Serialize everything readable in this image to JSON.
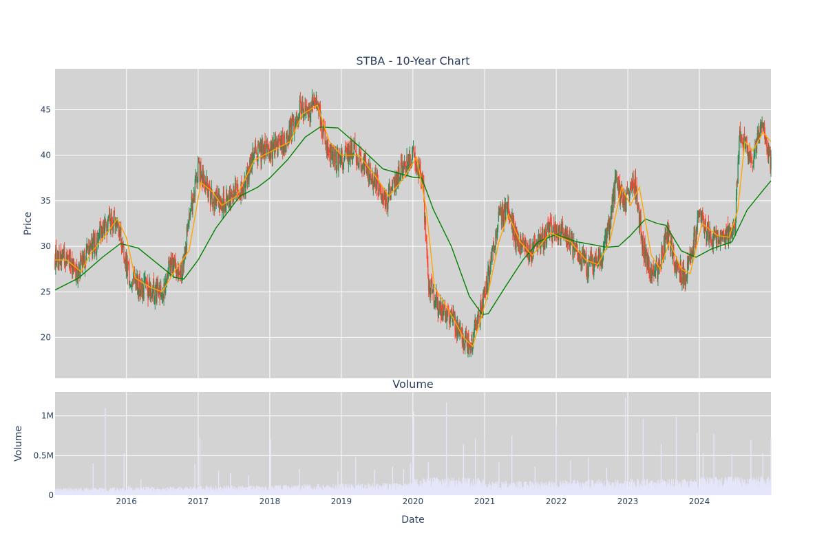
{
  "chart_data": {
    "type": "candlestick",
    "title": "STBA - 10-Year Chart",
    "xlabel": "Date",
    "x_range": [
      "2015-01-02",
      "2024-12-31"
    ],
    "x_ticks": [
      "2016",
      "2017",
      "2018",
      "2019",
      "2020",
      "2021",
      "2022",
      "2023",
      "2024"
    ],
    "price_panel": {
      "ylabel": "Price",
      "ylim": [
        15.5,
        49.5
      ],
      "y_ticks": [
        20,
        25,
        30,
        35,
        40,
        45
      ],
      "y_tick_labels": [
        "20",
        "25",
        "30",
        "35",
        "40",
        "45"
      ],
      "up_color": "#2e8b57",
      "down_color": "#ff4433",
      "price_path": [
        [
          "2015-01-02",
          28.5
        ],
        [
          "2015-03-01",
          28.7
        ],
        [
          "2015-05-01",
          27.0
        ],
        [
          "2015-06-15",
          29.5
        ],
        [
          "2015-08-01",
          30.5
        ],
        [
          "2015-09-15",
          32.0
        ],
        [
          "2015-11-01",
          33.0
        ],
        [
          "2015-12-01",
          31.5
        ],
        [
          "2016-01-15",
          26.5
        ],
        [
          "2016-03-01",
          25.5
        ],
        [
          "2016-04-15",
          25.3
        ],
        [
          "2016-06-01",
          25.0
        ],
        [
          "2016-07-01",
          25.0
        ],
        [
          "2016-08-15",
          28.0
        ],
        [
          "2016-10-15",
          27.5
        ],
        [
          "2016-11-15",
          33.0
        ],
        [
          "2016-12-31",
          38.5
        ],
        [
          "2017-02-01",
          37.0
        ],
        [
          "2017-03-15",
          35.0
        ],
        [
          "2017-05-01",
          34.5
        ],
        [
          "2017-07-01",
          36.0
        ],
        [
          "2017-08-15",
          35.5
        ],
        [
          "2017-10-15",
          40.5
        ],
        [
          "2018-01-01",
          40.3
        ],
        [
          "2018-03-01",
          41.0
        ],
        [
          "2018-04-15",
          42.5
        ],
        [
          "2018-06-01",
          45.0
        ],
        [
          "2018-07-15",
          44.8
        ],
        [
          "2018-09-01",
          46.0
        ],
        [
          "2018-10-15",
          41.0
        ],
        [
          "2018-12-20",
          39.0
        ],
        [
          "2019-03-01",
          40.5
        ],
        [
          "2019-05-01",
          39.0
        ],
        [
          "2019-07-01",
          37.0
        ],
        [
          "2019-08-20",
          35.0
        ],
        [
          "2019-10-15",
          37.5
        ],
        [
          "2019-12-31",
          40.0
        ],
        [
          "2020-02-20",
          37.0
        ],
        [
          "2020-03-20",
          26.0
        ],
        [
          "2020-05-15",
          23.0
        ],
        [
          "2020-07-15",
          22.5
        ],
        [
          "2020-09-01",
          20.0
        ],
        [
          "2020-10-20",
          19.0
        ],
        [
          "2020-12-31",
          24.5
        ],
        [
          "2021-02-01",
          28.0
        ],
        [
          "2021-03-15",
          33.0
        ],
        [
          "2021-05-01",
          34.0
        ],
        [
          "2021-06-15",
          30.5
        ],
        [
          "2021-08-15",
          29.5
        ],
        [
          "2021-10-01",
          30.5
        ],
        [
          "2021-12-15",
          32.0
        ],
        [
          "2022-02-01",
          31.5
        ],
        [
          "2022-04-01",
          29.5
        ],
        [
          "2022-06-01",
          28.0
        ],
        [
          "2022-07-15",
          28.0
        ],
        [
          "2022-09-15",
          30.5
        ],
        [
          "2022-11-01",
          37.0
        ],
        [
          "2022-12-15",
          34.5
        ],
        [
          "2023-02-01",
          37.5
        ],
        [
          "2023-03-20",
          30.0
        ],
        [
          "2023-05-01",
          26.5
        ],
        [
          "2023-06-15",
          28.0
        ],
        [
          "2023-07-20",
          31.5
        ],
        [
          "2023-09-01",
          28.0
        ],
        [
          "2023-10-25",
          26.5
        ],
        [
          "2023-12-31",
          33.0
        ],
        [
          "2024-02-15",
          31.5
        ],
        [
          "2024-04-01",
          30.5
        ],
        [
          "2024-05-15",
          31.0
        ],
        [
          "2024-06-30",
          32.0
        ],
        [
          "2024-07-25",
          42.0
        ],
        [
          "2024-09-01",
          41.0
        ],
        [
          "2024-10-01",
          39.5
        ],
        [
          "2024-11-10",
          43.5
        ],
        [
          "2024-12-31",
          39.0
        ]
      ],
      "overlays": [
        {
          "color": "#008000",
          "values": [
            [
              "2015-01-02",
              25.2
            ],
            [
              "2015-05-01",
              26.5
            ],
            [
              "2015-09-01",
              28.8
            ],
            [
              "2015-12-01",
              30.3
            ],
            [
              "2016-03-01",
              29.8
            ],
            [
              "2016-06-01",
              28.2
            ],
            [
              "2016-09-01",
              26.6
            ],
            [
              "2016-10-20",
              26.4
            ],
            [
              "2017-01-01",
              28.5
            ],
            [
              "2017-04-01",
              32.0
            ],
            [
              "2017-08-01",
              35.5
            ],
            [
              "2017-11-01",
              36.5
            ],
            [
              "2018-01-01",
              37.5
            ],
            [
              "2018-04-01",
              39.5
            ],
            [
              "2018-07-01",
              42.0
            ],
            [
              "2018-09-15",
              43.1
            ],
            [
              "2018-12-15",
              43.0
            ],
            [
              "2019-04-01",
              41.0
            ],
            [
              "2019-08-01",
              38.5
            ],
            [
              "2019-12-31",
              37.6
            ],
            [
              "2020-02-15",
              37.5
            ],
            [
              "2020-04-15",
              34.0
            ],
            [
              "2020-07-15",
              30.0
            ],
            [
              "2020-10-15",
              24.5
            ],
            [
              "2020-12-20",
              22.5
            ],
            [
              "2021-01-20",
              22.6
            ],
            [
              "2021-04-15",
              25.5
            ],
            [
              "2021-07-15",
              28.5
            ],
            [
              "2021-10-01",
              30.5
            ],
            [
              "2022-01-01",
              31.3
            ],
            [
              "2022-04-15",
              30.5
            ],
            [
              "2022-09-15",
              29.9
            ],
            [
              "2022-11-15",
              30.0
            ],
            [
              "2023-01-15",
              31.2
            ],
            [
              "2023-04-01",
              33.0
            ],
            [
              "2023-06-01",
              32.5
            ],
            [
              "2023-07-15",
              32.3
            ],
            [
              "2023-10-01",
              29.5
            ],
            [
              "2023-12-15",
              28.8
            ],
            [
              "2024-03-01",
              29.7
            ],
            [
              "2024-06-15",
              30.5
            ],
            [
              "2024-09-01",
              34.0
            ],
            [
              "2024-11-15",
              36.0
            ],
            [
              "2024-12-31",
              37.2
            ]
          ]
        },
        {
          "color": "#ffa500",
          "values": [
            [
              "2015-01-02",
              28.5
            ],
            [
              "2015-03-01",
              28.5
            ],
            [
              "2015-05-15",
              27.2
            ],
            [
              "2015-07-01",
              29.2
            ],
            [
              "2015-09-01",
              30.8
            ],
            [
              "2015-11-15",
              33.0
            ],
            [
              "2015-12-31",
              31.0
            ],
            [
              "2016-02-15",
              26.5
            ],
            [
              "2016-05-01",
              25.5
            ],
            [
              "2016-07-01",
              25.0
            ],
            [
              "2016-09-01",
              27.2
            ],
            [
              "2016-11-15",
              29.5
            ],
            [
              "2017-01-15",
              37.0
            ],
            [
              "2017-03-15",
              36.0
            ],
            [
              "2017-05-01",
              34.5
            ],
            [
              "2017-07-15",
              35.5
            ],
            [
              "2017-10-15",
              39.5
            ],
            [
              "2018-01-15",
              40.5
            ],
            [
              "2018-04-15",
              41.5
            ],
            [
              "2018-06-15",
              44.5
            ],
            [
              "2018-09-01",
              45.5
            ],
            [
              "2018-11-01",
              41.5
            ],
            [
              "2019-01-01",
              40.0
            ],
            [
              "2019-04-01",
              40.0
            ],
            [
              "2019-07-01",
              37.5
            ],
            [
              "2019-09-01",
              35.5
            ],
            [
              "2019-11-15",
              37.5
            ],
            [
              "2020-01-20",
              39.8
            ],
            [
              "2020-03-10",
              34.0
            ],
            [
              "2020-04-20",
              25.5
            ],
            [
              "2020-07-01",
              23.0
            ],
            [
              "2020-09-15",
              20.0
            ],
            [
              "2020-11-01",
              19.0
            ],
            [
              "2021-01-15",
              24.5
            ],
            [
              "2021-03-15",
              30.5
            ],
            [
              "2021-05-01",
              33.5
            ],
            [
              "2021-07-01",
              30.5
            ],
            [
              "2021-09-01",
              29.0
            ],
            [
              "2021-12-01",
              31.5
            ],
            [
              "2022-03-15",
              30.5
            ],
            [
              "2022-06-01",
              28.5
            ],
            [
              "2022-08-01",
              28.0
            ],
            [
              "2022-10-01",
              30.5
            ],
            [
              "2022-12-01",
              36.5
            ],
            [
              "2023-01-15",
              34.5
            ],
            [
              "2023-03-01",
              36.5
            ],
            [
              "2023-05-01",
              29.0
            ],
            [
              "2023-06-15",
              27.5
            ],
            [
              "2023-08-01",
              30.5
            ],
            [
              "2023-10-01",
              27.5
            ],
            [
              "2023-11-15",
              27.0
            ],
            [
              "2024-01-15",
              32.5
            ],
            [
              "2024-04-01",
              31.2
            ],
            [
              "2024-06-01",
              31.0
            ],
            [
              "2024-07-15",
              34.0
            ],
            [
              "2024-08-20",
              41.5
            ],
            [
              "2024-10-01",
              40.5
            ],
            [
              "2024-11-20",
              42.5
            ],
            [
              "2024-12-31",
              41.5
            ]
          ]
        }
      ]
    },
    "volume_panel": {
      "title": "Volume",
      "ylabel": "Volume",
      "ylim": [
        0,
        1300000
      ],
      "y_ticks": [
        0,
        500000,
        1000000
      ],
      "y_tick_labels": [
        "0",
        "0.5M",
        "1M"
      ],
      "bar_color": "#e6e6fa",
      "baseline_by_year": [
        [
          "2015",
          70000
        ],
        [
          "2016",
          80000
        ],
        [
          "2017",
          90000
        ],
        [
          "2018",
          100000
        ],
        [
          "2019",
          110000
        ],
        [
          "2020",
          160000
        ],
        [
          "2021",
          130000
        ],
        [
          "2022",
          140000
        ],
        [
          "2023",
          150000
        ],
        [
          "2024",
          170000
        ]
      ],
      "spikes": [
        [
          "2015-07-15",
          400000
        ],
        [
          "2015-09-15",
          1100000
        ],
        [
          "2015-12-20",
          530000
        ],
        [
          "2016-03-15",
          200000
        ],
        [
          "2016-12-15",
          390000
        ],
        [
          "2017-01-10",
          720000
        ],
        [
          "2017-04-15",
          310000
        ],
        [
          "2017-06-15",
          280000
        ],
        [
          "2017-09-15",
          250000
        ],
        [
          "2018-01-05",
          700000
        ],
        [
          "2018-06-01",
          330000
        ],
        [
          "2018-12-15",
          300000
        ],
        [
          "2019-03-15",
          480000
        ],
        [
          "2019-06-20",
          320000
        ],
        [
          "2019-09-20",
          360000
        ],
        [
          "2019-11-15",
          330000
        ],
        [
          "2019-12-20",
          410000
        ],
        [
          "2019-12-31",
          930000
        ],
        [
          "2020-01-05",
          1050000
        ],
        [
          "2020-03-20",
          420000
        ],
        [
          "2020-06-20",
          1170000
        ],
        [
          "2020-09-15",
          650000
        ],
        [
          "2020-11-15",
          720000
        ],
        [
          "2020-12-31",
          750000
        ],
        [
          "2021-03-15",
          420000
        ],
        [
          "2021-05-20",
          750000
        ],
        [
          "2021-09-15",
          360000
        ],
        [
          "2021-12-31",
          880000
        ],
        [
          "2022-03-15",
          440000
        ],
        [
          "2022-06-15",
          480000
        ],
        [
          "2022-09-15",
          350000
        ],
        [
          "2022-12-20",
          1230000
        ],
        [
          "2023-03-20",
          960000
        ],
        [
          "2023-06-20",
          650000
        ],
        [
          "2023-09-05",
          1010000
        ],
        [
          "2023-12-20",
          780000
        ],
        [
          "2024-01-20",
          530000
        ],
        [
          "2024-03-15",
          770000
        ],
        [
          "2024-06-15",
          520000
        ],
        [
          "2024-09-20",
          700000
        ],
        [
          "2024-11-20",
          530000
        ],
        [
          "2024-12-31",
          720000
        ]
      ]
    }
  }
}
